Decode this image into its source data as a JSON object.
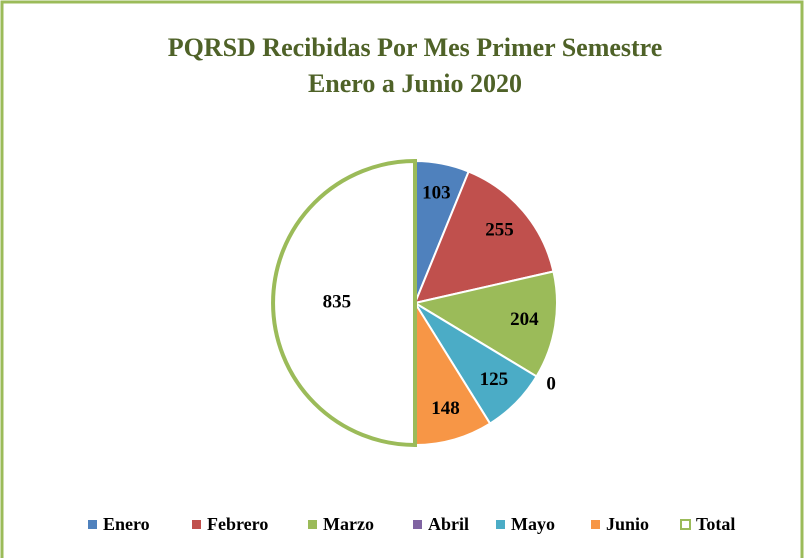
{
  "chart_data": {
    "type": "pie",
    "title": "PQRSD Recibidas Por Mes Primer Semestre",
    "subtitle": "Enero a Junio 2020",
    "categories": [
      "Enero",
      "Febrero",
      "Marzo",
      "Abril",
      "Mayo",
      "Junio",
      "Total"
    ],
    "values": [
      103,
      255,
      204,
      0,
      125,
      148,
      835
    ],
    "colors": [
      "#4f81bd",
      "#c0504d",
      "#9bbb59",
      "#8064a2",
      "#4bacc6",
      "#f79646",
      "#ffffff"
    ],
    "outline_color": "#9bbb59",
    "legend": "bottom"
  }
}
